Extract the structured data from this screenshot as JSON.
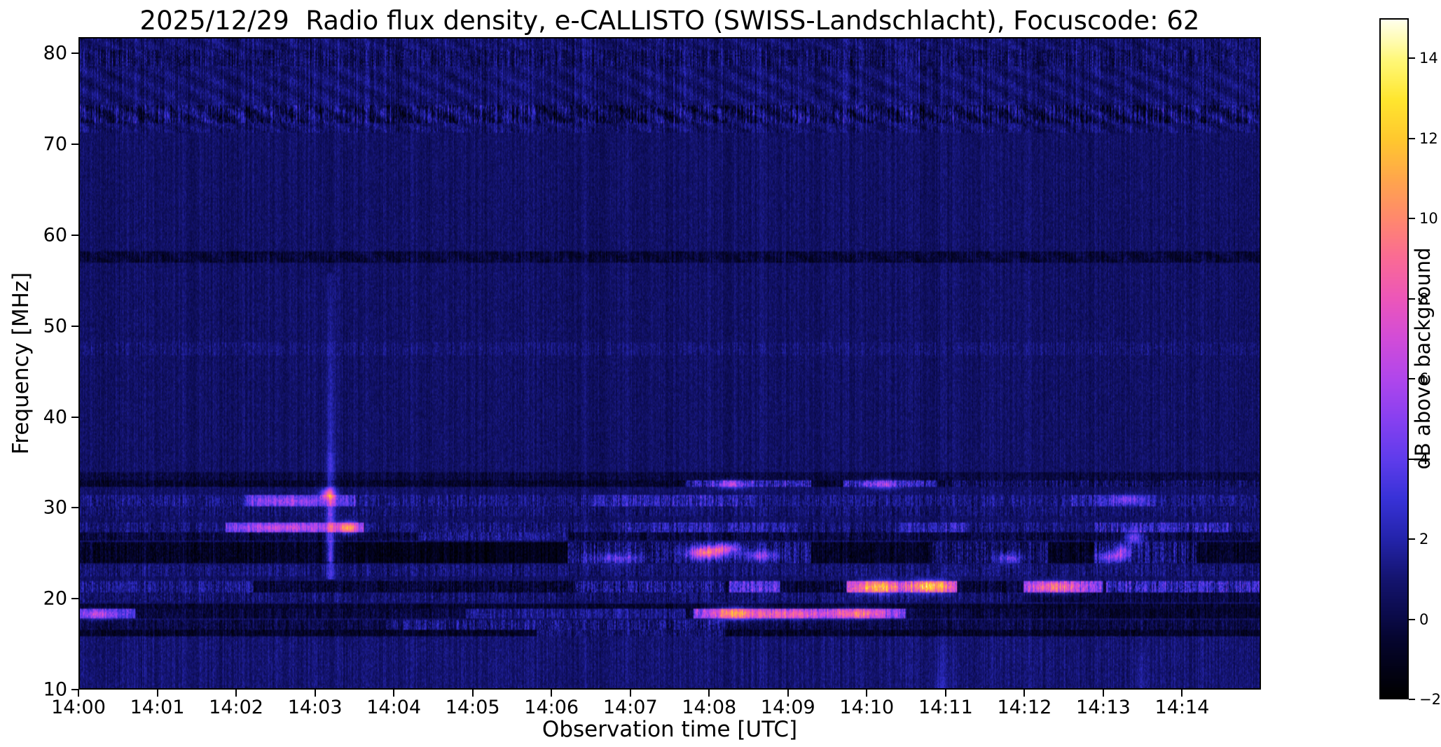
{
  "chart_data": {
    "type": "heatmap",
    "subtype": "radio-spectrogram",
    "title": "2025/12/29  Radio flux density, e-CALLISTO (SWISS-Landschlacht), Focuscode: 62",
    "xlabel": "Observation time [UTC]",
    "ylabel": "Frequency [MHz]",
    "colorbar_label": "dB above background",
    "x_ticks": [
      "14:00",
      "14:01",
      "14:02",
      "14:03",
      "14:04",
      "14:05",
      "14:06",
      "14:07",
      "14:08",
      "14:09",
      "14:10",
      "14:11",
      "14:12",
      "14:13",
      "14:14"
    ],
    "x_span_minutes": 15,
    "y_ticks": [
      80,
      70,
      60,
      50,
      40,
      30,
      20,
      10
    ],
    "freq_range": [
      10,
      81.8
    ],
    "value_range": [
      -2,
      15
    ],
    "colorbar_ticks": [
      {
        "label": "14",
        "value": 14
      },
      {
        "label": "12",
        "value": 12
      },
      {
        "label": "10",
        "value": 10
      },
      {
        "label": "8",
        "value": 8
      },
      {
        "label": "6",
        "value": 6
      },
      {
        "label": "4",
        "value": 4
      },
      {
        "label": "2",
        "value": 2
      },
      {
        "label": "0",
        "value": 0
      },
      {
        "label": "−2",
        "value": -2
      }
    ],
    "colormap": [
      [
        0.0,
        0,
        0,
        0
      ],
      [
        0.088,
        5,
        5,
        48
      ],
      [
        0.118,
        10,
        10,
        72
      ],
      [
        0.176,
        20,
        20,
        112
      ],
      [
        0.235,
        36,
        36,
        172
      ],
      [
        0.294,
        56,
        50,
        216
      ],
      [
        0.353,
        96,
        60,
        236
      ],
      [
        0.412,
        136,
        64,
        240
      ],
      [
        0.47,
        176,
        70,
        236
      ],
      [
        0.53,
        210,
        76,
        216
      ],
      [
        0.588,
        236,
        86,
        186
      ],
      [
        0.647,
        250,
        106,
        150
      ],
      [
        0.706,
        255,
        136,
        110
      ],
      [
        0.765,
        255,
        166,
        76
      ],
      [
        0.824,
        255,
        200,
        46
      ],
      [
        0.882,
        255,
        230,
        46
      ],
      [
        0.941,
        255,
        248,
        120
      ],
      [
        1.0,
        255,
        255,
        236
      ]
    ],
    "background": {
      "base": 0.7,
      "col_noise": 0.45,
      "pix_noise": 0.55
    },
    "bands": [
      {
        "f0": 71.5,
        "f1": 81.8,
        "level": 0.1,
        "noise": 0.9,
        "wavy": true
      },
      {
        "f0": 72.6,
        "f1": 74.6,
        "level": -0.3,
        "noise": 1.6,
        "wavy": true
      },
      {
        "f0": 78.8,
        "f1": 80.6,
        "level": -0.2,
        "noise": 1.1,
        "wavy": true
      },
      {
        "f0": 57.0,
        "f1": 58.4,
        "level": -1.0,
        "noise": 0.7,
        "wavy": true
      },
      {
        "f0": 46.8,
        "f1": 48.2,
        "level": 0.25,
        "noise": 0.55
      },
      {
        "f0": 33.0,
        "f1": 33.9,
        "level": -0.8,
        "noise": 0.5
      },
      {
        "f0": 32.2,
        "f1": 32.9,
        "level": -1.3,
        "noise": 0.6,
        "segments": [
          {
            "t0": 7.7,
            "t1": 9.3,
            "level": 1.4,
            "noise": 2.0
          },
          {
            "t0": 9.7,
            "t1": 10.9,
            "level": 1.4,
            "noise": 2.0
          },
          {
            "t0": 11.0,
            "t1": 15,
            "level": -0.2,
            "noise": 1.2
          }
        ]
      },
      {
        "f0": 30.1,
        "f1": 31.4,
        "level": 0.5,
        "noise": 1.1,
        "segments": [
          {
            "t0": 2.1,
            "t1": 3.5,
            "level": 2.8,
            "noise": 1.5
          },
          {
            "t0": 6.5,
            "t1": 8.6,
            "level": 1.4,
            "noise": 1.7
          },
          {
            "t0": 12.6,
            "t1": 13.7,
            "level": 1.3,
            "noise": 1.5
          }
        ]
      },
      {
        "f0": 28.9,
        "f1": 30.0,
        "level": 0.15,
        "noise": 0.8
      },
      {
        "f0": 27.2,
        "f1": 28.2,
        "level": 0.3,
        "noise": 1.0,
        "segments": [
          {
            "t0": 1.85,
            "t1": 3.6,
            "level": 3.4,
            "noise": 1.4
          },
          {
            "t0": 6.9,
            "t1": 9.1,
            "level": 1.2,
            "noise": 1.5
          },
          {
            "t0": 10.4,
            "t1": 11.3,
            "level": 1.4,
            "noise": 1.5
          },
          {
            "t0": 12.9,
            "t1": 14.6,
            "level": 1.4,
            "noise": 1.8
          }
        ]
      },
      {
        "f0": 26.2,
        "f1": 27.1,
        "level": -0.8,
        "noise": 0.9,
        "segments": [
          {
            "t0": 4.3,
            "t1": 6.2,
            "level": 0.7,
            "noise": 1.2
          }
        ]
      },
      {
        "f0": 23.7,
        "f1": 26.1,
        "level": -1.5,
        "noise": 0.8,
        "segments": [
          {
            "t0": 3.5,
            "t1": 6.2,
            "level": -1.9,
            "noise": 0.5
          },
          {
            "t0": 6.2,
            "t1": 9.3,
            "level": 0.2,
            "noise": 1.7
          },
          {
            "t0": 10.8,
            "t1": 12.3,
            "level": -0.1,
            "noise": 1.5
          },
          {
            "t0": 12.9,
            "t1": 14.2,
            "level": 0.2,
            "noise": 1.7
          }
        ]
      },
      {
        "f0": 22.4,
        "f1": 23.6,
        "level": 0.25,
        "noise": 0.9
      },
      {
        "f0": 20.6,
        "f1": 21.7,
        "level": -1.1,
        "noise": 1.0,
        "segments": [
          {
            "t0": 0,
            "t1": 2.2,
            "level": 0.7,
            "noise": 1.2
          },
          {
            "t0": 6.3,
            "t1": 8.2,
            "level": 0.7,
            "noise": 1.8
          },
          {
            "t0": 8.25,
            "t1": 8.9,
            "level": 2.8,
            "noise": 2.0
          },
          {
            "t0": 9.75,
            "t1": 11.15,
            "level": 4.8,
            "noise": 2.4
          },
          {
            "t0": 12.0,
            "t1": 13.0,
            "level": 3.8,
            "noise": 2.0
          },
          {
            "t0": 13.05,
            "t1": 15,
            "level": 1.8,
            "noise": 2.0
          }
        ]
      },
      {
        "f0": 19.4,
        "f1": 20.5,
        "level": 0.15,
        "noise": 0.9,
        "segments": [
          {
            "t0": 12.0,
            "t1": 15,
            "level": -0.8,
            "noise": 0.8
          }
        ]
      },
      {
        "f0": 18.8,
        "f1": 19.3,
        "level": -1.2,
        "noise": 0.5
      },
      {
        "f0": 17.6,
        "f1": 18.7,
        "level": -0.9,
        "noise": 0.8,
        "segments": [
          {
            "t0": 0,
            "t1": 0.7,
            "level": 2.4,
            "noise": 1.4
          },
          {
            "t0": 4.9,
            "t1": 7.7,
            "level": 0.7,
            "noise": 1.1
          },
          {
            "t0": 7.8,
            "t1": 10.5,
            "level": 3.8,
            "noise": 1.8
          },
          {
            "t0": 12.9,
            "t1": 15,
            "level": -1.3,
            "noise": 0.6
          }
        ]
      },
      {
        "f0": 16.4,
        "f1": 17.5,
        "level": -0.7,
        "noise": 0.9,
        "segments": [
          {
            "t0": 3.9,
            "t1": 8.2,
            "level": 0.4,
            "noise": 1.4
          }
        ]
      },
      {
        "f0": 15.7,
        "f1": 16.3,
        "level": -1.4,
        "noise": 0.6,
        "segments": [
          {
            "t0": 5.8,
            "t1": 8.2,
            "level": 0.2,
            "noise": 1.0
          }
        ]
      },
      {
        "f0": 10.0,
        "f1": 15.6,
        "level": 0.25,
        "noise": 0.35
      }
    ],
    "events": [
      {
        "t": 3.15,
        "f": 31.45,
        "st": 4,
        "sf": 0.4,
        "amp": 6.0
      },
      {
        "t": 2.7,
        "f": 30.6,
        "st": 20,
        "sf": 0.35,
        "amp": 2.2
      },
      {
        "t": 3.4,
        "f": 27.7,
        "st": 5,
        "sf": 0.45,
        "amp": 7.0
      },
      {
        "t": 2.6,
        "f": 27.7,
        "st": 25,
        "sf": 0.3,
        "amp": 2.5
      },
      {
        "t": 7.95,
        "f": 24.9,
        "st": 10,
        "sf": 0.5,
        "amp": 8.0
      },
      {
        "t": 8.2,
        "f": 25.4,
        "st": 8,
        "sf": 0.4,
        "amp": 4.5
      },
      {
        "t": 8.65,
        "f": 24.6,
        "st": 10,
        "sf": 0.4,
        "amp": 4.0
      },
      {
        "t": 6.8,
        "f": 24.3,
        "st": 15,
        "sf": 0.4,
        "amp": 3.0
      },
      {
        "t": 0.25,
        "f": 18.1,
        "st": 10,
        "sf": 0.4,
        "amp": 3.5
      },
      {
        "t": 8.3,
        "f": 18.2,
        "st": 12,
        "sf": 0.5,
        "amp": 6.0
      },
      {
        "t": 9.0,
        "f": 18.1,
        "st": 20,
        "sf": 0.4,
        "amp": 4.0
      },
      {
        "t": 9.9,
        "f": 18.2,
        "st": 15,
        "sf": 0.4,
        "amp": 4.5
      },
      {
        "t": 10.15,
        "f": 21.1,
        "st": 12,
        "sf": 0.5,
        "amp": 6.0
      },
      {
        "t": 10.8,
        "f": 21.2,
        "st": 10,
        "sf": 0.5,
        "amp": 7.0
      },
      {
        "t": 12.4,
        "f": 21.1,
        "st": 14,
        "sf": 0.45,
        "amp": 5.0
      },
      {
        "t": 8.3,
        "f": 32.5,
        "st": 8,
        "sf": 0.35,
        "amp": 4.0
      },
      {
        "t": 10.2,
        "f": 32.5,
        "st": 10,
        "sf": 0.35,
        "amp": 4.0
      },
      {
        "t": 11.8,
        "f": 24.3,
        "st": 8,
        "sf": 0.4,
        "amp": 3.5
      },
      {
        "t": 13.1,
        "f": 24.4,
        "st": 8,
        "sf": 0.4,
        "amp": 4.0
      },
      {
        "t": 13.25,
        "f": 25.1,
        "st": 5,
        "sf": 0.5,
        "amp": 4.0
      },
      {
        "t": 13.4,
        "f": 26.6,
        "st": 5,
        "sf": 0.5,
        "amp": 4.5
      },
      {
        "t": 13.3,
        "f": 30.8,
        "st": 8,
        "sf": 0.4,
        "amp": 3.0
      }
    ],
    "streaks": [
      {
        "t": 3.18,
        "f0": 22.0,
        "f1": 56.0,
        "w": 2.0,
        "amp": 3.0
      },
      {
        "t": 3.18,
        "f0": 24.0,
        "f1": 36.0,
        "w": 2.6,
        "amp": 2.2
      },
      {
        "t": 10.95,
        "f0": 10.0,
        "f1": 16.0,
        "w": 4.0,
        "amp": 1.1
      },
      {
        "t": 13.5,
        "f0": 10.0,
        "f1": 15.0,
        "w": 3.0,
        "amp": 0.8
      }
    ]
  }
}
